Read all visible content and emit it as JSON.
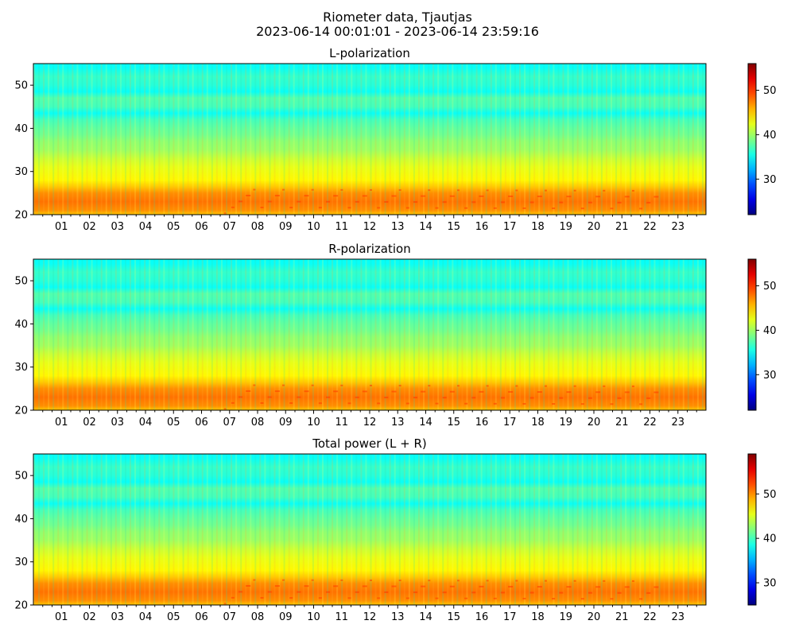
{
  "figure": {
    "title_line1": "Riometer data, Tjautjas",
    "title_line2": "2023-06-14 00:01:01 - 2023-06-14 23:59:16"
  },
  "colormap": "jet",
  "chart_data": [
    {
      "type": "heatmap",
      "title": "L-polarization",
      "x_range_hours": [
        0,
        24
      ],
      "x_ticks": [
        "01",
        "02",
        "03",
        "04",
        "05",
        "06",
        "07",
        "08",
        "09",
        "10",
        "11",
        "12",
        "13",
        "14",
        "15",
        "16",
        "17",
        "18",
        "19",
        "20",
        "21",
        "22",
        "23"
      ],
      "y_range": [
        20,
        55
      ],
      "y_ticks": [
        20,
        30,
        40,
        50
      ],
      "colorbar": {
        "range": [
          22,
          56
        ],
        "ticks": [
          30,
          40,
          50
        ]
      },
      "profile": [
        {
          "y": 20,
          "value": 45
        },
        {
          "y": 21,
          "value": 47
        },
        {
          "y": 23,
          "value": 48
        },
        {
          "y": 25,
          "value": 47
        },
        {
          "y": 26.5,
          "value": 45
        },
        {
          "y": 28,
          "value": 43.5
        },
        {
          "y": 31,
          "value": 42.5
        },
        {
          "y": 33,
          "value": 41.5
        },
        {
          "y": 35,
          "value": 40
        },
        {
          "y": 37,
          "value": 39.5
        },
        {
          "y": 38.5,
          "value": 38.5
        },
        {
          "y": 40,
          "value": 38
        },
        {
          "y": 42,
          "value": 37
        },
        {
          "y": 43.5,
          "value": 35
        },
        {
          "y": 45,
          "value": 37
        },
        {
          "y": 47,
          "value": 37.5
        },
        {
          "y": 48.5,
          "value": 35
        },
        {
          "y": 50,
          "value": 36
        },
        {
          "y": 52,
          "value": 36.5
        },
        {
          "y": 54,
          "value": 35
        },
        {
          "y": 55,
          "value": 35
        }
      ]
    },
    {
      "type": "heatmap",
      "title": "R-polarization",
      "x_range_hours": [
        0,
        24
      ],
      "x_ticks": [
        "01",
        "02",
        "03",
        "04",
        "05",
        "06",
        "07",
        "08",
        "09",
        "10",
        "11",
        "12",
        "13",
        "14",
        "15",
        "16",
        "17",
        "18",
        "19",
        "20",
        "21",
        "22",
        "23"
      ],
      "y_range": [
        20,
        55
      ],
      "y_ticks": [
        20,
        30,
        40,
        50
      ],
      "colorbar": {
        "range": [
          22,
          56
        ],
        "ticks": [
          30,
          40,
          50
        ]
      },
      "profile": [
        {
          "y": 20,
          "value": 45
        },
        {
          "y": 21,
          "value": 47
        },
        {
          "y": 23,
          "value": 48
        },
        {
          "y": 25,
          "value": 47
        },
        {
          "y": 26.5,
          "value": 45
        },
        {
          "y": 28,
          "value": 43.5
        },
        {
          "y": 31,
          "value": 42.5
        },
        {
          "y": 33,
          "value": 41.5
        },
        {
          "y": 35,
          "value": 40
        },
        {
          "y": 37,
          "value": 39.5
        },
        {
          "y": 38.5,
          "value": 38.5
        },
        {
          "y": 40,
          "value": 38
        },
        {
          "y": 42,
          "value": 37
        },
        {
          "y": 43.5,
          "value": 35
        },
        {
          "y": 45,
          "value": 37
        },
        {
          "y": 47,
          "value": 37.5
        },
        {
          "y": 48.5,
          "value": 35
        },
        {
          "y": 50,
          "value": 36
        },
        {
          "y": 52,
          "value": 36.5
        },
        {
          "y": 54,
          "value": 35
        },
        {
          "y": 55,
          "value": 35
        }
      ]
    },
    {
      "type": "heatmap",
      "title": "Total power (L + R)",
      "x_range_hours": [
        0,
        24
      ],
      "x_ticks": [
        "01",
        "02",
        "03",
        "04",
        "05",
        "06",
        "07",
        "08",
        "09",
        "10",
        "11",
        "12",
        "13",
        "14",
        "15",
        "16",
        "17",
        "18",
        "19",
        "20",
        "21",
        "22",
        "23"
      ],
      "y_range": [
        20,
        55
      ],
      "y_ticks": [
        20,
        30,
        40,
        50
      ],
      "colorbar": {
        "range": [
          25,
          59
        ],
        "ticks": [
          30,
          40,
          50
        ]
      },
      "profile": [
        {
          "y": 20,
          "value": 48
        },
        {
          "y": 21,
          "value": 50
        },
        {
          "y": 23,
          "value": 51
        },
        {
          "y": 25,
          "value": 50
        },
        {
          "y": 26.5,
          "value": 48
        },
        {
          "y": 28,
          "value": 46.5
        },
        {
          "y": 31,
          "value": 45.5
        },
        {
          "y": 33,
          "value": 44.5
        },
        {
          "y": 35,
          "value": 43
        },
        {
          "y": 37,
          "value": 42.5
        },
        {
          "y": 38.5,
          "value": 41.5
        },
        {
          "y": 40,
          "value": 41
        },
        {
          "y": 42,
          "value": 40
        },
        {
          "y": 43.5,
          "value": 38
        },
        {
          "y": 45,
          "value": 40
        },
        {
          "y": 47,
          "value": 40.5
        },
        {
          "y": 48.5,
          "value": 38
        },
        {
          "y": 50,
          "value": 39
        },
        {
          "y": 52,
          "value": 39.5
        },
        {
          "y": 54,
          "value": 38
        },
        {
          "y": 55,
          "value": 38
        }
      ]
    }
  ]
}
